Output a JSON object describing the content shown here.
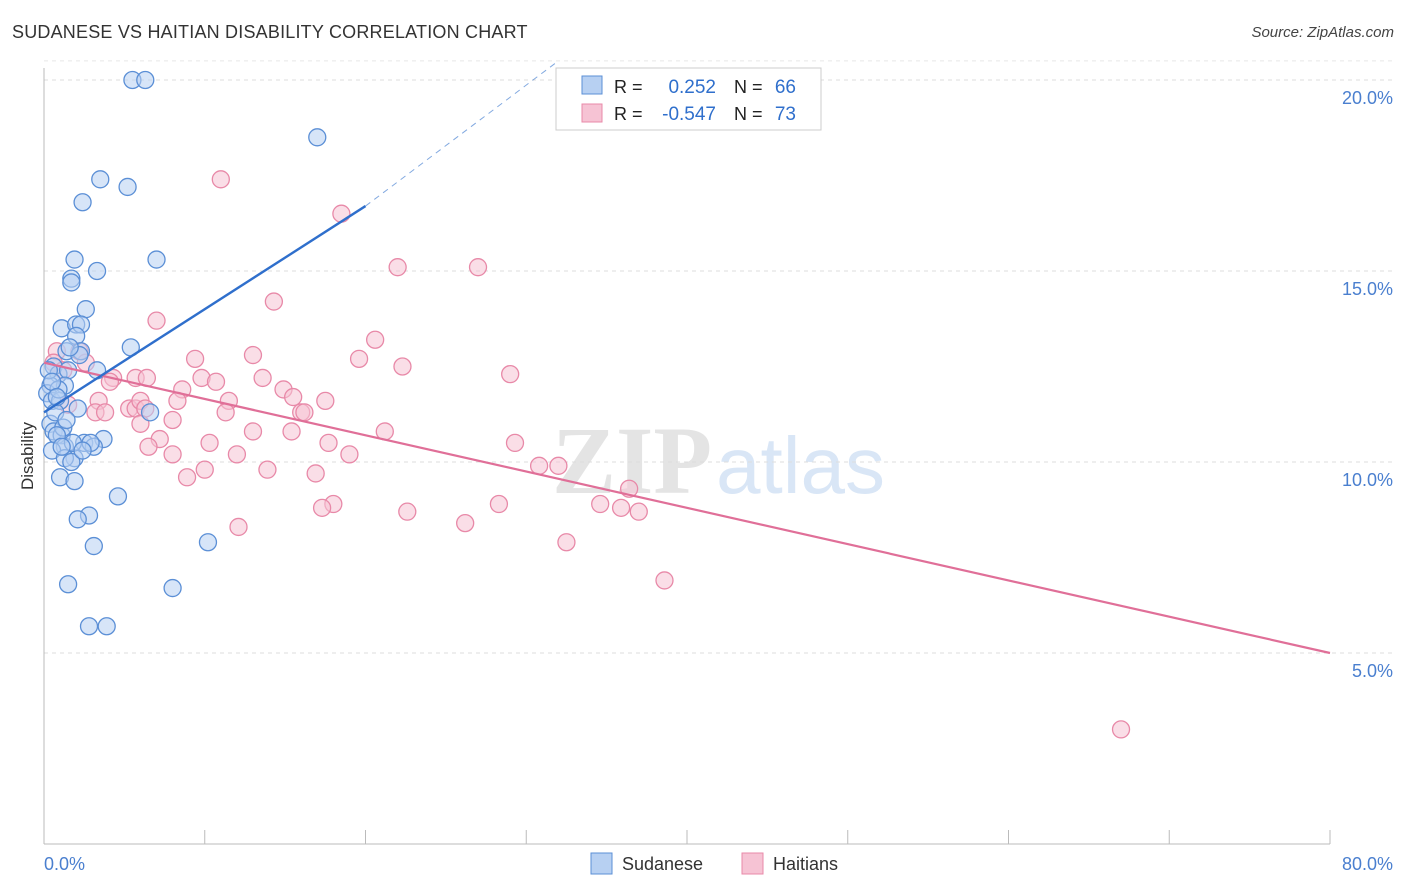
{
  "header": {
    "title": "SUDANESE VS HAITIAN DISABILITY CORRELATION CHART",
    "source": "Source: ZipAtlas.com"
  },
  "watermark": {
    "zip": "ZIP",
    "atlas": "atlas"
  },
  "colors": {
    "sudanese": "#5b8fd6",
    "sudanese_fill": "#b7d0f2",
    "sudanese_line": "#2f6fcc",
    "haitians": "#e889a8",
    "haitians_fill": "#f6c3d4",
    "haitians_line": "#e06f98",
    "axis_label": "#4a7fcf"
  },
  "legend_box": {
    "rows": [
      {
        "r_label": "R =",
        "r_value": "0.252",
        "n_label": "N =",
        "n_value": "66"
      },
      {
        "r_label": "R =",
        "r_value": "-0.547",
        "n_label": "N =",
        "n_value": "73"
      }
    ]
  },
  "legend_bottom": [
    {
      "label": "Sudanese"
    },
    {
      "label": "Haitians"
    }
  ],
  "chart_data": {
    "type": "scatter",
    "title": "SUDANESE VS HAITIAN DISABILITY CORRELATION CHART",
    "ylabel": "Disability",
    "xlim": [
      0,
      80
    ],
    "ylim": [
      0.5,
      21.0
    ],
    "x_tick_labels": [
      "0.0%",
      "80.0%"
    ],
    "y_ticks": [
      5,
      10,
      15,
      20
    ],
    "y_tick_labels": [
      "5.0%",
      "10.0%",
      "15.0%",
      "20.0%"
    ],
    "grid": "horizontal dashed",
    "legend_position": "top-center and bottom",
    "series": [
      {
        "name": "Sudanese",
        "R": 0.252,
        "N": 66,
        "trend": {
          "x": [
            0,
            20
          ],
          "y": [
            11.3,
            16.7
          ],
          "dashed_extension_to": [
            32,
            20.5
          ]
        },
        "points": [
          [
            5.5,
            20.0
          ],
          [
            6.3,
            20.0
          ],
          [
            17.0,
            18.5
          ],
          [
            3.5,
            17.4
          ],
          [
            5.2,
            17.2
          ],
          [
            2.4,
            16.8
          ],
          [
            7.0,
            15.3
          ],
          [
            1.9,
            15.3
          ],
          [
            3.3,
            15.0
          ],
          [
            1.7,
            14.8
          ],
          [
            1.7,
            14.7
          ],
          [
            2.6,
            14.0
          ],
          [
            1.1,
            13.5
          ],
          [
            2.0,
            13.6
          ],
          [
            2.3,
            13.6
          ],
          [
            2.0,
            13.3
          ],
          [
            5.4,
            13.0
          ],
          [
            1.4,
            12.9
          ],
          [
            2.3,
            12.9
          ],
          [
            0.6,
            12.5
          ],
          [
            0.9,
            12.3
          ],
          [
            1.5,
            12.4
          ],
          [
            3.3,
            12.4
          ],
          [
            0.4,
            12.0
          ],
          [
            1.3,
            12.0
          ],
          [
            0.2,
            11.8
          ],
          [
            0.5,
            11.6
          ],
          [
            1.0,
            11.6
          ],
          [
            2.1,
            11.4
          ],
          [
            6.6,
            11.3
          ],
          [
            0.4,
            11.0
          ],
          [
            0.6,
            10.8
          ],
          [
            1.1,
            10.7
          ],
          [
            1.2,
            10.9
          ],
          [
            0.8,
            10.7
          ],
          [
            2.5,
            10.5
          ],
          [
            3.7,
            10.6
          ],
          [
            3.1,
            10.4
          ],
          [
            1.3,
            10.4
          ],
          [
            0.5,
            10.3
          ],
          [
            1.9,
            10.1
          ],
          [
            1.3,
            10.1
          ],
          [
            1.7,
            10.0
          ],
          [
            1.0,
            9.6
          ],
          [
            1.9,
            9.5
          ],
          [
            4.6,
            9.1
          ],
          [
            2.8,
            8.6
          ],
          [
            2.1,
            8.5
          ],
          [
            3.1,
            7.8
          ],
          [
            10.2,
            7.9
          ],
          [
            1.5,
            6.8
          ],
          [
            8.0,
            6.7
          ],
          [
            2.8,
            5.7
          ],
          [
            3.9,
            5.7
          ],
          [
            0.9,
            11.9
          ],
          [
            2.2,
            12.8
          ],
          [
            1.6,
            13.0
          ],
          [
            0.3,
            12.4
          ],
          [
            0.7,
            11.3
          ],
          [
            1.8,
            10.5
          ],
          [
            2.9,
            10.5
          ],
          [
            0.5,
            12.1
          ],
          [
            1.1,
            10.4
          ],
          [
            0.8,
            11.7
          ],
          [
            2.4,
            10.3
          ],
          [
            1.4,
            11.1
          ]
        ]
      },
      {
        "name": "Haitians",
        "R": -0.547,
        "N": 73,
        "trend": {
          "x": [
            0,
            80
          ],
          "y": [
            12.6,
            5.0
          ]
        },
        "points": [
          [
            11.0,
            17.4
          ],
          [
            18.5,
            16.5
          ],
          [
            22.0,
            15.1
          ],
          [
            27.0,
            15.1
          ],
          [
            14.3,
            14.2
          ],
          [
            7.0,
            13.7
          ],
          [
            20.6,
            13.2
          ],
          [
            0.8,
            12.9
          ],
          [
            2.2,
            12.9
          ],
          [
            13.0,
            12.8
          ],
          [
            9.4,
            12.7
          ],
          [
            19.6,
            12.7
          ],
          [
            2.6,
            12.6
          ],
          [
            22.3,
            12.5
          ],
          [
            0.6,
            12.6
          ],
          [
            29.0,
            12.3
          ],
          [
            5.7,
            12.2
          ],
          [
            6.4,
            12.2
          ],
          [
            9.8,
            12.2
          ],
          [
            10.7,
            12.1
          ],
          [
            13.6,
            12.2
          ],
          [
            4.3,
            12.2
          ],
          [
            14.9,
            11.9
          ],
          [
            4.1,
            12.1
          ],
          [
            8.6,
            11.9
          ],
          [
            8.3,
            11.6
          ],
          [
            11.5,
            11.6
          ],
          [
            15.5,
            11.7
          ],
          [
            17.5,
            11.6
          ],
          [
            3.4,
            11.6
          ],
          [
            5.3,
            11.4
          ],
          [
            5.7,
            11.4
          ],
          [
            1.5,
            11.5
          ],
          [
            6.0,
            11.6
          ],
          [
            11.3,
            11.3
          ],
          [
            16.0,
            11.3
          ],
          [
            3.2,
            11.3
          ],
          [
            6.3,
            11.4
          ],
          [
            16.2,
            11.3
          ],
          [
            3.8,
            11.3
          ],
          [
            8.0,
            11.1
          ],
          [
            6.0,
            11.0
          ],
          [
            13.0,
            10.8
          ],
          [
            15.4,
            10.8
          ],
          [
            21.2,
            10.8
          ],
          [
            7.2,
            10.6
          ],
          [
            10.3,
            10.5
          ],
          [
            17.7,
            10.5
          ],
          [
            29.3,
            10.5
          ],
          [
            6.5,
            10.4
          ],
          [
            8.0,
            10.2
          ],
          [
            12.0,
            10.2
          ],
          [
            19.0,
            10.2
          ],
          [
            32.0,
            9.9
          ],
          [
            10.0,
            9.8
          ],
          [
            13.9,
            9.8
          ],
          [
            16.9,
            9.7
          ],
          [
            8.9,
            9.6
          ],
          [
            36.4,
            9.3
          ],
          [
            30.8,
            9.9
          ],
          [
            18.0,
            8.9
          ],
          [
            17.3,
            8.8
          ],
          [
            28.3,
            8.9
          ],
          [
            34.6,
            8.9
          ],
          [
            22.6,
            8.7
          ],
          [
            35.9,
            8.8
          ],
          [
            37.0,
            8.7
          ],
          [
            26.2,
            8.4
          ],
          [
            12.1,
            8.3
          ],
          [
            32.5,
            7.9
          ],
          [
            38.6,
            6.9
          ],
          [
            67.0,
            3.0
          ],
          [
            1.2,
            12.4
          ]
        ]
      }
    ]
  }
}
